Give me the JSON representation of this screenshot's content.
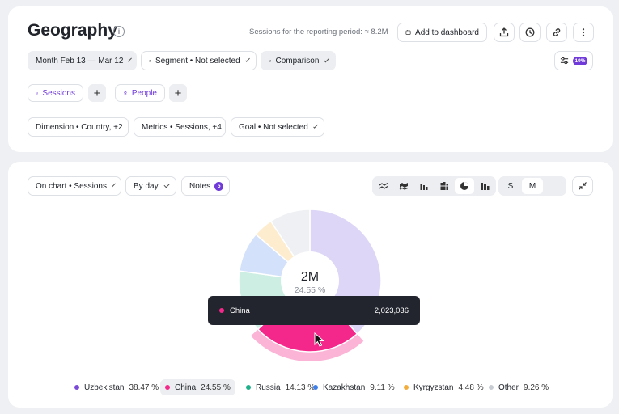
{
  "header": {
    "title": "Geography",
    "sessions_info": "Sessions for the reporting period: ≈ 8.2M",
    "add_dashboard_label": "Add to dashboard",
    "settings_badge": "19%"
  },
  "filters": {
    "period_label": "Month Feb 13 — Mar 12",
    "segment_label": "Segment • Not selected",
    "comparison_label": "Comparison"
  },
  "tabs": {
    "sessions_label": "Sessions",
    "people_label": "People"
  },
  "params": {
    "dimension_label": "Dimension • Country, +2",
    "metrics_label": "Metrics • Sessions, +4",
    "goal_label": "Goal • Not selected"
  },
  "chart_toolbar": {
    "on_chart_label": "On chart • Sessions",
    "by_day_label": "By day",
    "notes_label": "Notes",
    "notes_count": "5",
    "size_s": "S",
    "size_m": "M",
    "size_l": "L"
  },
  "chart_data": {
    "type": "pie",
    "center_value": "2M",
    "center_percent": "24.55 %",
    "highlighted": "China",
    "tooltip": {
      "label": "China",
      "value": "2,023,036"
    },
    "slices": [
      {
        "name": "Uzbekistan",
        "percent": 38.47,
        "percent_label": "38.47 %",
        "color": "#ddd6f6",
        "legend_color": "#7b4bd8"
      },
      {
        "name": "China",
        "percent": 24.55,
        "percent_label": "24.55 %",
        "color": "#f4288a",
        "legend_color": "#f4288a"
      },
      {
        "name": "Russia",
        "percent": 14.13,
        "percent_label": "14.13 %",
        "color": "#cdeee3",
        "legend_color": "#1fb08a"
      },
      {
        "name": "Kazakhstan",
        "percent": 9.11,
        "percent_label": "9.11 %",
        "color": "#d3e1fb",
        "legend_color": "#3f7fea"
      },
      {
        "name": "Kyrgyzstan",
        "percent": 4.48,
        "percent_label": "4.48 %",
        "color": "#fdecce",
        "legend_color": "#f2ad3d"
      },
      {
        "name": "Other",
        "percent": 9.26,
        "percent_label": "9.26 %",
        "color": "#eff0f3",
        "legend_color": "#c7cbd2"
      }
    ]
  }
}
